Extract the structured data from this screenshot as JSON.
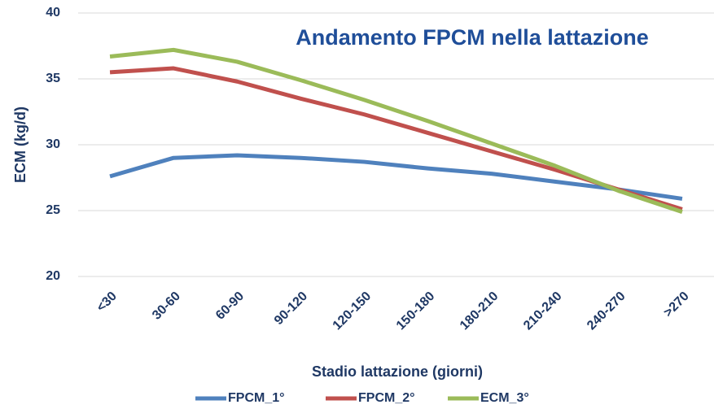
{
  "chart_data": {
    "type": "line",
    "title": "Andamento FPCM nella lattazione",
    "x_label": "Stadio lattazione (giorni)",
    "y_label": "ECM (kg/d)",
    "categories": [
      "<30",
      "30-60",
      "60-90",
      "90-120",
      "120-150",
      "150-180",
      "180-210",
      "210-240",
      "240-270",
      ">270"
    ],
    "series": [
      {
        "name": "FPCM_1°",
        "color": "#4f81bd",
        "values": [
          27.6,
          29.0,
          29.2,
          29.0,
          28.7,
          28.2,
          27.8,
          27.2,
          26.6,
          25.9
        ]
      },
      {
        "name": "FPCM_2°",
        "color": "#c0504d",
        "values": [
          35.5,
          35.8,
          34.8,
          33.5,
          32.3,
          30.9,
          29.5,
          28.1,
          26.6,
          25.1
        ]
      },
      {
        "name": "ECM_3°",
        "color": "#9bbb59",
        "values": [
          36.7,
          37.2,
          36.3,
          34.9,
          33.4,
          31.8,
          30.1,
          28.4,
          26.5,
          24.9
        ]
      }
    ],
    "ylim": [
      20,
      40
    ],
    "yticks": [
      20,
      25,
      30,
      35,
      40
    ],
    "grid": true
  }
}
